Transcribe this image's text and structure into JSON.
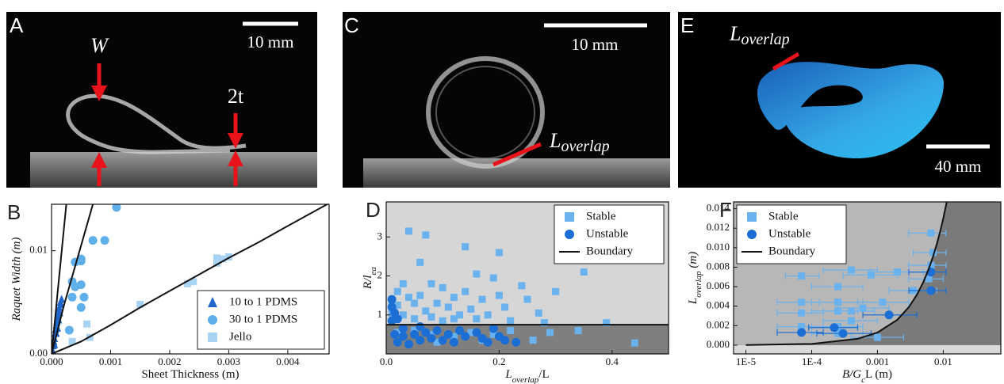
{
  "photos": {
    "A": {
      "letter": "A",
      "width_label": "W",
      "thickness_label": "2t",
      "scale": "10 mm"
    },
    "C": {
      "letter": "C",
      "scale": "10 mm",
      "overlap": "L",
      "overlap_sub": "overlap"
    },
    "E": {
      "letter": "E",
      "scale": "40 mm",
      "overlap": "L",
      "overlap_sub": "overlap"
    }
  },
  "chart_data": [
    {
      "type": "scatter",
      "panel": "B",
      "xlabel": [
        {
          "text": "Sheet Thickness (m)"
        }
      ],
      "ylabel": [
        {
          "text": "Raquet Width (m)"
        }
      ],
      "xlim": [
        0,
        0.0047
      ],
      "ylim": [
        0,
        0.0145
      ],
      "xticks": [
        {
          "value": 0,
          "label": "0.000"
        },
        0.001,
        0.002,
        0.003,
        0.004
      ],
      "yticks": [
        {
          "value": 0,
          "label": "0.00"
        },
        0.01
      ],
      "legend": "lower right",
      "grid": false,
      "series": [
        {
          "name": "10 to 1 PDMS",
          "marker": "triangle",
          "color": "#1f66c9",
          "x": [
            2e-05,
            3e-05,
            4e-05,
            5e-05,
            6e-05,
            7e-05,
            8e-05,
            9e-05,
            0.0001,
            0.00011,
            0.00012,
            0.00013,
            0.00015,
            0.00017,
            0.0001,
            8e-05,
            5e-05,
            0.00012,
            0.00014,
            0.00016
          ],
          "values": [
            0.0003,
            0.0008,
            0.0012,
            0.0015,
            0.002,
            0.0024,
            0.0028,
            0.0031,
            0.0035,
            0.0038,
            0.0042,
            0.0045,
            0.005,
            0.0053,
            0.0025,
            0.002,
            0.0009,
            0.0033,
            0.004,
            0.0048
          ]
        },
        {
          "name": "30 to 1 PDMS",
          "marker": "circle",
          "color": "#5fb0ea",
          "x": [
            0.0003,
            0.00035,
            0.00035,
            0.0004,
            0.0004,
            0.0005,
            0.0005,
            0.00055,
            0.0005,
            0.0007,
            0.0009,
            0.0011,
            0.0005
          ],
          "values": [
            0.0023,
            0.0055,
            0.007,
            0.0065,
            0.0089,
            0.0092,
            0.0067,
            0.0055,
            0.0045,
            0.011,
            0.011,
            0.0142,
            0.009
          ]
        },
        {
          "name": "Jello",
          "marker": "square",
          "color": "#a9d3f2",
          "x": [
            0.00035,
            0.0006,
            0.00065,
            0.0015,
            0.0023,
            0.0024,
            0.0028,
            0.0029,
            0.0028,
            0.003
          ],
          "values": [
            0.0012,
            0.0029,
            0.0016,
            0.0048,
            0.0068,
            0.007,
            0.0093,
            0.0092,
            0.0088,
            0.0094
          ]
        },
        {
          "marker": "line",
          "color": "#111111",
          "x": [
            0,
            5e-05,
            0.0001,
            0.00015,
            0.0002,
            0.00025
          ],
          "values": [
            0,
            0.0028,
            0.0058,
            0.0087,
            0.0116,
            0.0145
          ]
        },
        {
          "marker": "line",
          "color": "#111111",
          "x": [
            0,
            0.0001,
            0.0002,
            0.0003,
            0.0004,
            0.0005,
            0.0006,
            0.0007
          ],
          "values": [
            0,
            0.0022,
            0.0045,
            0.0065,
            0.0085,
            0.0105,
            0.0125,
            0.0145
          ]
        },
        {
          "marker": "line",
          "color": "#111111",
          "x": [
            0,
            0.0005,
            0.001,
            0.0015,
            0.002,
            0.0025,
            0.003,
            0.0035,
            0.004,
            0.0047
          ],
          "values": [
            0,
            0.0012,
            0.0028,
            0.0045,
            0.0061,
            0.0077,
            0.0093,
            0.0108,
            0.0124,
            0.0146
          ]
        }
      ]
    },
    {
      "type": "scatter",
      "panel": "D",
      "xlabel": [
        {
          "text": "L"
        },
        {
          "text": "overlap",
          "sub": true
        },
        {
          "text": "/L"
        }
      ],
      "ylabel": [
        {
          "text": "R/l"
        },
        {
          "text": "ea",
          "sub": true
        }
      ],
      "xlim": [
        0,
        0.5
      ],
      "ylim": [
        0,
        3.9
      ],
      "xticks": [
        {
          "value": 0,
          "label": "0.0"
        },
        0.2,
        0.4
      ],
      "yticks": [
        1,
        2,
        3
      ],
      "legend": "upper right",
      "grid": false,
      "shade": {
        "above": "#d6d6d6",
        "below": "#7f7f7f"
      },
      "series": [
        {
          "name": "Stable",
          "marker": "square",
          "color": "#6ab2ee",
          "x": [
            0.01,
            0.01,
            0.02,
            0.02,
            0.03,
            0.03,
            0.04,
            0.04,
            0.05,
            0.05,
            0.06,
            0.06,
            0.07,
            0.07,
            0.08,
            0.08,
            0.09,
            0.1,
            0.1,
            0.11,
            0.12,
            0.12,
            0.13,
            0.14,
            0.14,
            0.15,
            0.16,
            0.16,
            0.17,
            0.18,
            0.19,
            0.2,
            0.2,
            0.21,
            0.22,
            0.24,
            0.25,
            0.27,
            0.3,
            0.35,
            0.28,
            0.39,
            0.02,
            0.05,
            0.08,
            0.12,
            0.15,
            0.19,
            0.22,
            0.26,
            0.29,
            0.34,
            0.44,
            0.09,
            0.17
          ],
          "values": [
            1.3,
            1.05,
            1.6,
            1.25,
            1.8,
            1.0,
            3.15,
            1.45,
            1.3,
            0.9,
            2.35,
            1.5,
            3.05,
            1.1,
            1.8,
            0.95,
            1.3,
            1.7,
            0.85,
            1.2,
            1.45,
            0.9,
            1.0,
            2.75,
            1.6,
            1.15,
            2.05,
            0.9,
            1.4,
            1.0,
            1.95,
            2.6,
            1.5,
            1.2,
            0.85,
            1.75,
            1.4,
            1.05,
            1.6,
            2.1,
            0.8,
            0.8,
            0.55,
            0.6,
            0.5,
            0.45,
            0.55,
            0.5,
            0.6,
            0.35,
            0.55,
            0.6,
            0.28,
            0.3,
            0.35
          ]
        },
        {
          "name": "Unstable",
          "marker": "circle",
          "color": "#1a6ed4",
          "x": [
            0.01,
            0.01,
            0.01,
            0.015,
            0.02,
            0.03,
            0.03,
            0.04,
            0.05,
            0.06,
            0.07,
            0.08,
            0.09,
            0.1,
            0.11,
            0.12,
            0.13,
            0.14,
            0.16,
            0.17,
            0.18,
            0.19,
            0.2,
            0.21,
            0.23,
            0.02,
            0.06,
            0.015
          ],
          "values": [
            1.4,
            1.2,
            0.85,
            0.5,
            0.3,
            0.65,
            0.45,
            0.25,
            0.5,
            0.35,
            0.55,
            0.4,
            0.6,
            0.35,
            0.5,
            0.3,
            0.6,
            0.45,
            0.55,
            0.4,
            0.3,
            0.65,
            0.45,
            0.35,
            0.3,
            0.9,
            0.7,
            1.05
          ]
        },
        {
          "name": "Boundary",
          "marker": "line",
          "color": "#111111",
          "x": [
            0,
            0.5
          ],
          "values": [
            0.75,
            0.75
          ]
        }
      ]
    },
    {
      "type": "scatter",
      "panel": "F",
      "xlabel": [
        {
          "text": "B/G"
        },
        {
          "text": "c",
          "sub": true
        },
        {
          "text": "L (m)"
        }
      ],
      "ylabel": [
        {
          "text": "L"
        },
        {
          "text": "overlap",
          "sub": true
        },
        {
          "text": " (m)"
        }
      ],
      "xscale": "log",
      "xlim": [
        6.5e-06,
        0.075
      ],
      "ylim": [
        -0.0009,
        0.0147
      ],
      "xticks": [
        {
          "value": 1e-05,
          "label": "1E-5"
        },
        {
          "value": 0.0001,
          "label": "1E-4"
        },
        0.001,
        0.01
      ],
      "yticks": [
        {
          "value": 0,
          "label": "0.000"
        },
        0.002,
        0.004,
        0.006,
        0.008,
        {
          "value": 0.01,
          "label": "0.010"
        },
        0.012,
        0.014
      ],
      "legend": "upper left",
      "grid": false,
      "shade": {
        "above": "#b7b7b7",
        "below": "#7a7a7a",
        "under_zero": "#d9d9d9"
      },
      "series": [
        {
          "name": "Stable",
          "marker": "square",
          "color": "#6ab2ee",
          "x": [
            7e-05,
            0.00025,
            0.0004,
            0.0008,
            0.002,
            0.0065,
            0.007,
            0.0065,
            0.006,
            0.0035,
            0.0012,
            7e-05,
            7e-05,
            0.00025,
            0.00025,
            0.0004,
            0.0004,
            7e-05,
            0.00025,
            0.00025,
            0.001,
            0.0006
          ],
          "values": [
            0.0071,
            0.006,
            0.0077,
            0.0072,
            0.0075,
            0.0115,
            0.0095,
            0.0082,
            0.0068,
            0.0056,
            0.0044,
            0.0044,
            0.0033,
            0.0044,
            0.0035,
            0.0035,
            0.0025,
            0.0019,
            0.0019,
            0.0012,
            0.0008,
            0.0038
          ],
          "x_low": [
            4e-05,
            0.0001,
            0.00015,
            0.0003,
            0.0008,
            0.003,
            0.0035,
            0.003,
            0.003,
            0.0015,
            0.0005,
            3e-05,
            3e-05,
            0.0001,
            0.0001,
            0.00015,
            0.00015,
            3e-05,
            0.0001,
            0.0001,
            0.0004,
            0.00025
          ],
          "x_high": [
            0.00013,
            0.0006,
            0.001,
            0.002,
            0.005,
            0.011,
            0.011,
            0.011,
            0.01,
            0.008,
            0.003,
            0.00013,
            0.00015,
            0.0006,
            0.0005,
            0.0009,
            0.001,
            0.00015,
            0.0006,
            0.0006,
            0.0025,
            0.0015
          ]
        },
        {
          "name": "Unstable",
          "marker": "circle",
          "color": "#1a6ed4",
          "x": [
            7e-05,
            0.00022,
            0.0003,
            0.0015,
            0.0065,
            0.0065
          ],
          "values": [
            0.0013,
            0.0018,
            0.0012,
            0.0031,
            0.0075,
            0.0056
          ],
          "x_low": [
            3e-05,
            9e-05,
            0.00012,
            0.0006,
            0.003,
            0.003
          ],
          "x_high": [
            0.00015,
            0.0005,
            0.0008,
            0.004,
            0.011,
            0.011
          ]
        },
        {
          "name": "Boundary",
          "marker": "line",
          "color": "#111111",
          "x": [
            1e-05,
            0.0001,
            0.0005,
            0.001,
            0.002,
            0.003,
            0.004,
            0.005,
            0.006,
            0.007,
            0.008,
            0.009,
            0.01,
            0.0113
          ],
          "values": [
            1.3e-05,
            0.00013,
            0.00065,
            0.0013,
            0.0026,
            0.0039,
            0.0052,
            0.0065,
            0.0078,
            0.0091,
            0.0104,
            0.0117,
            0.013,
            0.0147
          ]
        }
      ]
    }
  ]
}
